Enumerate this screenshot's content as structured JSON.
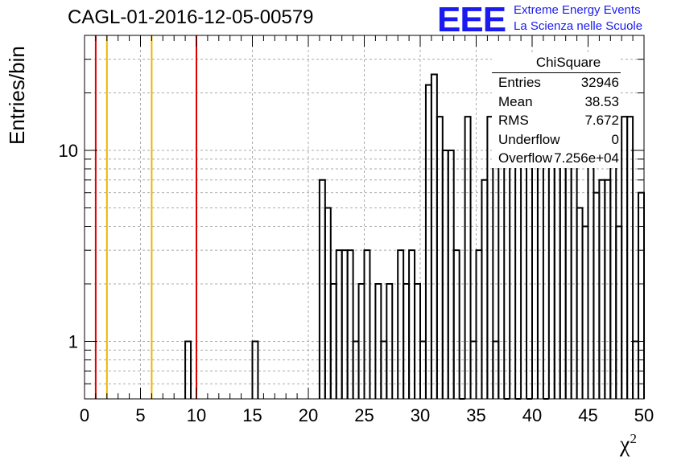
{
  "title": "CAGL-01-2016-12-05-00579",
  "logo": {
    "mark": "EEE",
    "line1": "Extreme Energy Events",
    "line2": "La Scienza nelle Scuole",
    "color": "#1b1bf0"
  },
  "stats": {
    "name": "ChiSquare",
    "rows": [
      {
        "label": "Entries",
        "value": "32946"
      },
      {
        "label": "Mean",
        "value": "38.53"
      },
      {
        "label": "RMS",
        "value": "7.672"
      },
      {
        "label": "Underflow",
        "value": "0"
      },
      {
        "label": "Overflow",
        "value": "7.256e+04"
      }
    ]
  },
  "chart_data": {
    "type": "histogram",
    "ylabel": "Entries/bin",
    "xlabel": "χ",
    "xlabel_sup": "2",
    "xlim": [
      0,
      50
    ],
    "ylim": [
      0.5,
      40
    ],
    "yscale": "log",
    "grid": true,
    "bin_width": 0.5,
    "bins_x_start": [
      9,
      15,
      21,
      21.5,
      22,
      22.5,
      23,
      23.5,
      24,
      24.5,
      25,
      26,
      26.5,
      27,
      28,
      28.5,
      29,
      29.5,
      30,
      30.5,
      31,
      31.5,
      32,
      32.5,
      33,
      33.5,
      34,
      34.5,
      35,
      35.5,
      36,
      36.5,
      37,
      37.5,
      38,
      38.5,
      39,
      39.5,
      40,
      40.5,
      41,
      41.5,
      42,
      42.5,
      43,
      43.5,
      44,
      44.5,
      45,
      45.5,
      46,
      46.5,
      47,
      47.5,
      48,
      48.5,
      49,
      49.5
    ],
    "bins_counts": [
      1,
      1,
      7,
      5,
      2,
      3,
      3,
      3,
      1,
      2,
      3,
      2,
      1,
      2,
      3,
      2,
      3,
      2,
      1,
      22,
      25,
      15,
      10,
      10,
      3,
      0.3,
      15,
      1,
      3,
      7,
      15,
      1,
      15,
      0.3,
      20,
      0.3,
      15,
      0.3,
      15,
      10,
      0.3,
      20,
      20,
      17,
      15,
      10,
      5,
      4,
      10,
      6,
      7,
      7,
      15,
      4,
      15,
      15,
      1,
      6
    ],
    "vertical_lines": [
      {
        "x": 1,
        "color": "#e00000"
      },
      {
        "x": 2,
        "color": "#f0b400"
      },
      {
        "x": 6,
        "color": "#f0b400"
      },
      {
        "x": 10,
        "color": "#e00000"
      }
    ],
    "x_ticks": [
      "0",
      "5",
      "10",
      "15",
      "20",
      "25",
      "30",
      "35",
      "40",
      "45",
      "50"
    ],
    "y_ticks": [
      "1",
      "10"
    ]
  }
}
